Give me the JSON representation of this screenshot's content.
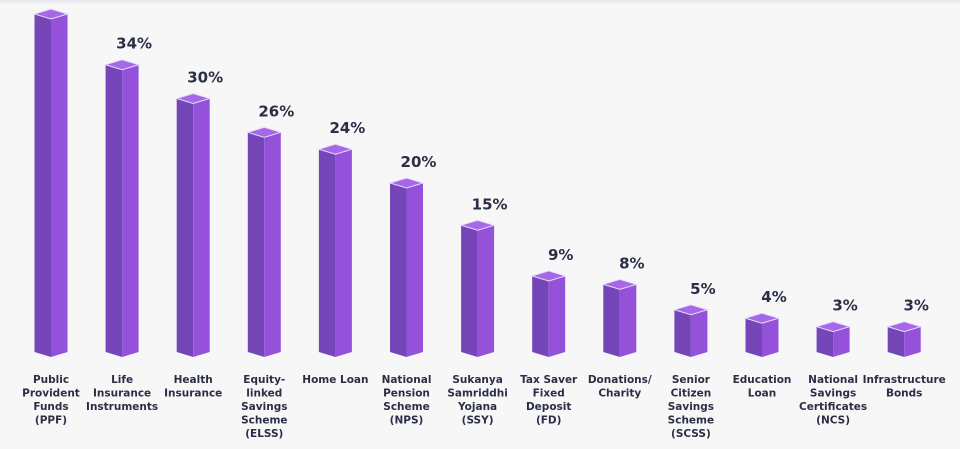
{
  "chart_data": {
    "type": "bar",
    "title": "",
    "xlabel": "",
    "ylabel": "",
    "ylim": [
      0,
      42
    ],
    "grid": false,
    "legend": "none",
    "colors": {
      "bar_left_face": "#7446b8",
      "bar_right_face": "#9452db",
      "bar_top_face": "#a568e6",
      "label_text": "#2b2f45",
      "background": "#f7f7f8"
    },
    "categories": [
      [
        "Public",
        "Provident",
        "Funds",
        "(PPF)"
      ],
      [
        "Life",
        "Insurance",
        "Instruments"
      ],
      [
        "Health",
        "Insurance"
      ],
      [
        "Equity-",
        "linked",
        "Savings",
        "Scheme",
        "(ELSS)"
      ],
      [
        "Home Loan"
      ],
      [
        "National",
        "Pension",
        "Scheme",
        "(NPS)"
      ],
      [
        "Sukanya",
        "Samriddhi",
        "Yojana",
        "(SSY)"
      ],
      [
        "Tax Saver",
        "Fixed",
        "Deposit",
        "(FD)"
      ],
      [
        "Donations/",
        "Charity"
      ],
      [
        "Senior",
        "Citizen",
        "Savings",
        "Scheme",
        "(SCSS)"
      ],
      [
        "Education",
        "Loan"
      ],
      [
        "National",
        "Savings",
        "Certificates",
        "(NCS)"
      ],
      [
        "Infrastructure",
        "Bonds"
      ]
    ],
    "values": [
      40,
      34,
      30,
      26,
      24,
      20,
      15,
      9,
      8,
      5,
      4,
      3,
      3
    ],
    "data_labels": [
      "",
      "34%",
      "30%",
      "26%",
      "24%",
      "20%",
      "15%",
      "9%",
      "8%",
      "5%",
      "4%",
      "3%",
      "3%"
    ]
  }
}
